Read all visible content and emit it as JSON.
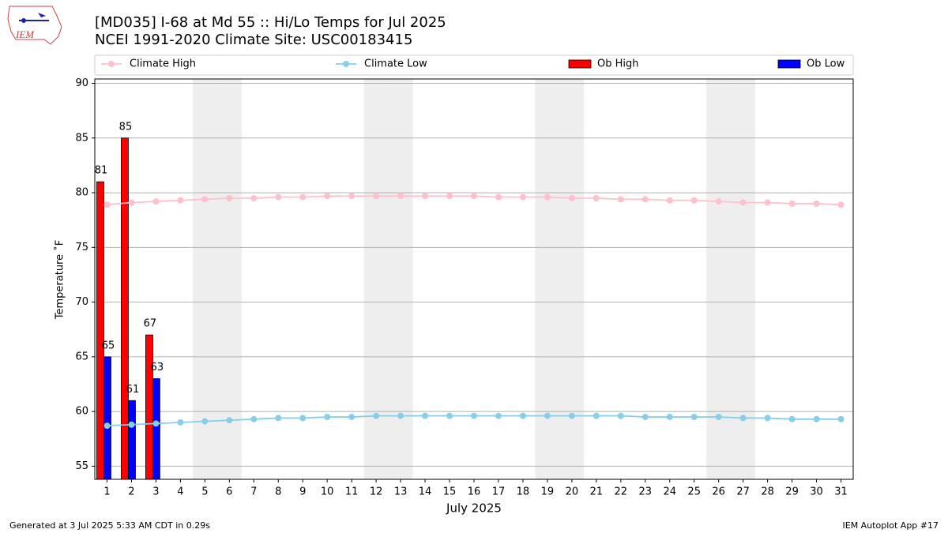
{
  "logo_text": "IEM",
  "footer_left": "Generated at 3 Jul 2025 5:33 AM CDT in 0.29s",
  "footer_right": "IEM Autoplot App #17",
  "chart_data": {
    "type": "bar",
    "title": "[MD035] I-68 at Md 55 :: Hi/Lo Temps for Jul 2025",
    "subtitle": "NCEI 1991-2020 Climate Site: USC00183415",
    "x_label": "July 2025",
    "y_label": "Temperature ˚F",
    "categories": [
      1,
      2,
      3,
      4,
      5,
      6,
      7,
      8,
      9,
      10,
      11,
      12,
      13,
      14,
      15,
      16,
      17,
      18,
      19,
      20,
      21,
      22,
      23,
      24,
      25,
      26,
      27,
      28,
      29,
      30,
      31
    ],
    "shaded_categories": [
      5,
      6,
      12,
      13,
      19,
      20,
      26,
      27
    ],
    "ylim": [
      53.8,
      90.4
    ],
    "yticks": [
      55,
      60,
      65,
      70,
      75,
      80,
      85,
      90
    ],
    "grid": true,
    "series": [
      {
        "name": "Climate High",
        "type": "line",
        "color": "#ffc0cb",
        "values": [
          78.9,
          79.1,
          79.2,
          79.3,
          79.4,
          79.5,
          79.5,
          79.6,
          79.6,
          79.7,
          79.7,
          79.7,
          79.7,
          79.7,
          79.7,
          79.7,
          79.6,
          79.6,
          79.6,
          79.5,
          79.5,
          79.4,
          79.4,
          79.3,
          79.3,
          79.2,
          79.1,
          79.1,
          79.0,
          79.0,
          78.9
        ]
      },
      {
        "name": "Climate Low",
        "type": "line",
        "color": "#87ceeb",
        "values": [
          58.7,
          58.8,
          58.9,
          59.0,
          59.1,
          59.2,
          59.3,
          59.4,
          59.4,
          59.5,
          59.5,
          59.6,
          59.6,
          59.6,
          59.6,
          59.6,
          59.6,
          59.6,
          59.6,
          59.6,
          59.6,
          59.6,
          59.5,
          59.5,
          59.5,
          59.5,
          59.4,
          59.4,
          59.3,
          59.3,
          59.3
        ]
      },
      {
        "name": "Ob High",
        "type": "bar",
        "color": "#ff0000",
        "values": [
          81,
          85,
          67,
          null,
          null,
          null,
          null,
          null,
          null,
          null,
          null,
          null,
          null,
          null,
          null,
          null,
          null,
          null,
          null,
          null,
          null,
          null,
          null,
          null,
          null,
          null,
          null,
          null,
          null,
          null,
          null
        ]
      },
      {
        "name": "Ob Low",
        "type": "bar",
        "color": "#0000ff",
        "values": [
          65,
          61,
          63,
          null,
          null,
          null,
          null,
          null,
          null,
          null,
          null,
          null,
          null,
          null,
          null,
          null,
          null,
          null,
          null,
          null,
          null,
          null,
          null,
          null,
          null,
          null,
          null,
          null,
          null,
          null,
          null
        ]
      }
    ]
  }
}
